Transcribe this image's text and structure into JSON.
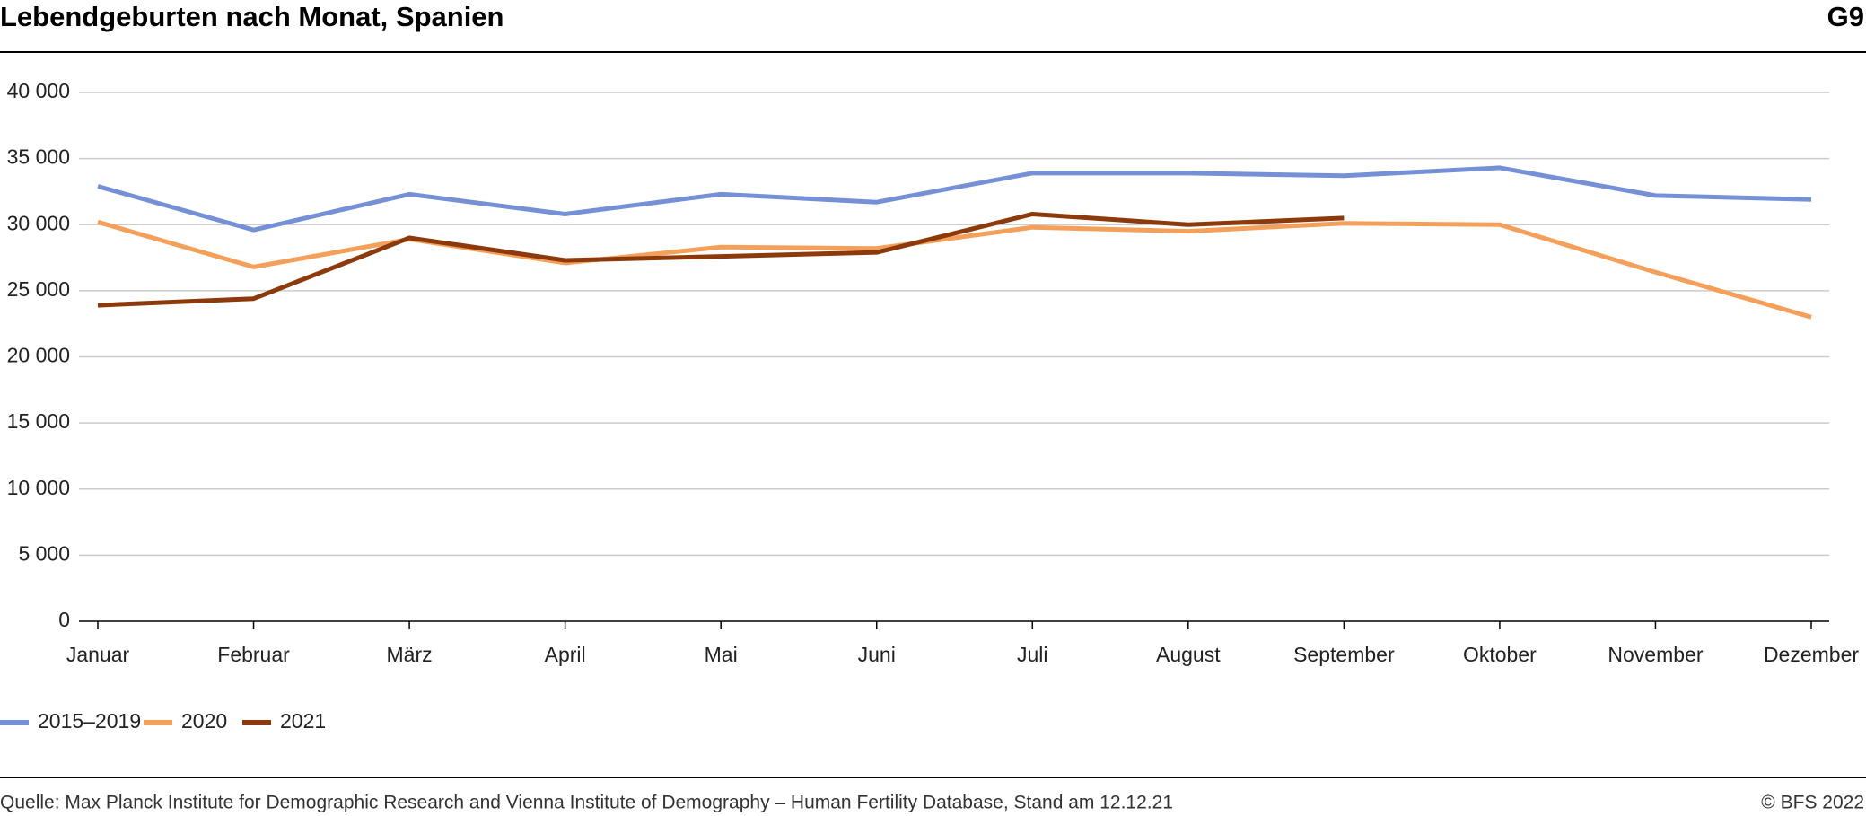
{
  "chart_data": {
    "type": "line",
    "title": "Lebendgeburten nach Monat, Spanien",
    "chart_number": "G9",
    "source": "Quelle: Max Planck Institute for Demographic Research and Vienna Institute of Demography – Human Fertility Database, Stand am 12.12.21",
    "copyright": "© BFS 2022",
    "categories": [
      "Januar",
      "Februar",
      "März",
      "April",
      "Mai",
      "Juni",
      "Juli",
      "August",
      "September",
      "Oktober",
      "November",
      "Dezember"
    ],
    "series": [
      {
        "name": "2015–2019",
        "color": "#7590d6",
        "values": [
          32900,
          29600,
          32300,
          30800,
          32300,
          31700,
          33900,
          33900,
          33700,
          34300,
          32200,
          31900
        ]
      },
      {
        "name": "2020",
        "color": "#f5a05a",
        "values": [
          30200,
          26800,
          28900,
          27100,
          28300,
          28200,
          29800,
          29500,
          30100,
          30000,
          26400,
          23000
        ]
      },
      {
        "name": "2021",
        "color": "#8c3a0c",
        "values": [
          23900,
          24400,
          29000,
          27300,
          27600,
          27900,
          30800,
          30000,
          30500,
          null,
          null,
          null
        ]
      }
    ],
    "ylim": [
      0,
      40000
    ],
    "yticks": [
      0,
      {
        "value": 5000,
        "label": "5 000"
      },
      {
        "value": 10000,
        "label": "10 000"
      },
      {
        "value": 15000,
        "label": "15 000"
      },
      {
        "value": 20000,
        "label": "20 000"
      },
      {
        "value": 25000,
        "label": "25 000"
      },
      {
        "value": 30000,
        "label": "30 000"
      },
      {
        "value": 35000,
        "label": "35 000"
      },
      {
        "value": 40000,
        "label": "40 000"
      }
    ],
    "grid": true,
    "legend": "bottom-left"
  }
}
